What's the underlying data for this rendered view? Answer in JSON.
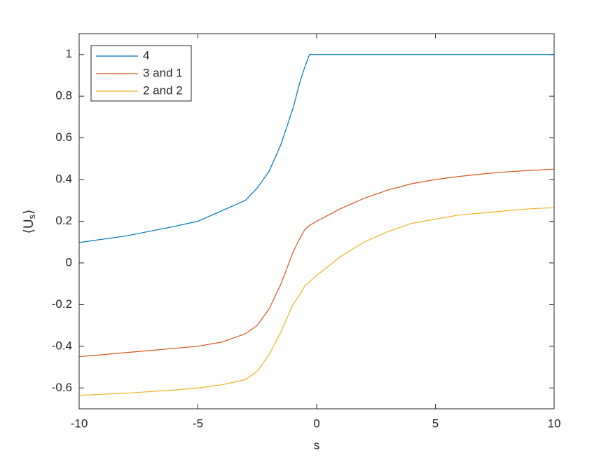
{
  "chart_data": {
    "type": "line",
    "xlabel": "s",
    "ylabel": [
      "⟨U",
      "s",
      "⟩"
    ],
    "x": [
      -10,
      -8,
      -6,
      -5,
      -4,
      -3,
      -2.5,
      -2,
      -1.5,
      -1,
      -0.7,
      -0.5,
      -0.3,
      0,
      1,
      2,
      3,
      4,
      5,
      6,
      7,
      8,
      9,
      10
    ],
    "series": [
      {
        "name": "4",
        "color": "#0072bd",
        "values": [
          0.098,
          0.13,
          0.175,
          0.2,
          0.25,
          0.3,
          0.36,
          0.44,
          0.57,
          0.74,
          0.87,
          0.94,
          1.0,
          1.0,
          1.0,
          1.0,
          1.0,
          1.0,
          1.0,
          1.0,
          1.0,
          1.0,
          1.0,
          1.0
        ]
      },
      {
        "name": "3 and 1",
        "color": "#d95319",
        "values": [
          -0.45,
          -0.43,
          -0.41,
          -0.4,
          -0.38,
          -0.34,
          -0.3,
          -0.22,
          -0.1,
          0.05,
          0.12,
          0.16,
          0.18,
          0.2,
          0.26,
          0.31,
          0.35,
          0.38,
          0.4,
          0.415,
          0.427,
          0.437,
          0.444,
          0.45
        ]
      },
      {
        "name": "2 and 2",
        "color": "#edb120",
        "values": [
          -0.635,
          -0.625,
          -0.61,
          -0.6,
          -0.585,
          -0.56,
          -0.52,
          -0.44,
          -0.33,
          -0.2,
          -0.15,
          -0.11,
          -0.09,
          -0.06,
          0.03,
          0.1,
          0.15,
          0.19,
          0.21,
          0.23,
          0.24,
          0.25,
          0.26,
          0.265
        ]
      }
    ],
    "xlim": [
      -10,
      10
    ],
    "xticks": [
      -10,
      -5,
      0,
      5,
      10
    ],
    "ylim": [
      -0.7,
      1.1
    ],
    "yticks": [
      -0.6,
      -0.4,
      -0.2,
      0,
      0.2,
      0.4,
      0.6,
      0.8,
      1
    ],
    "legend": "northwest",
    "grid": false
  }
}
